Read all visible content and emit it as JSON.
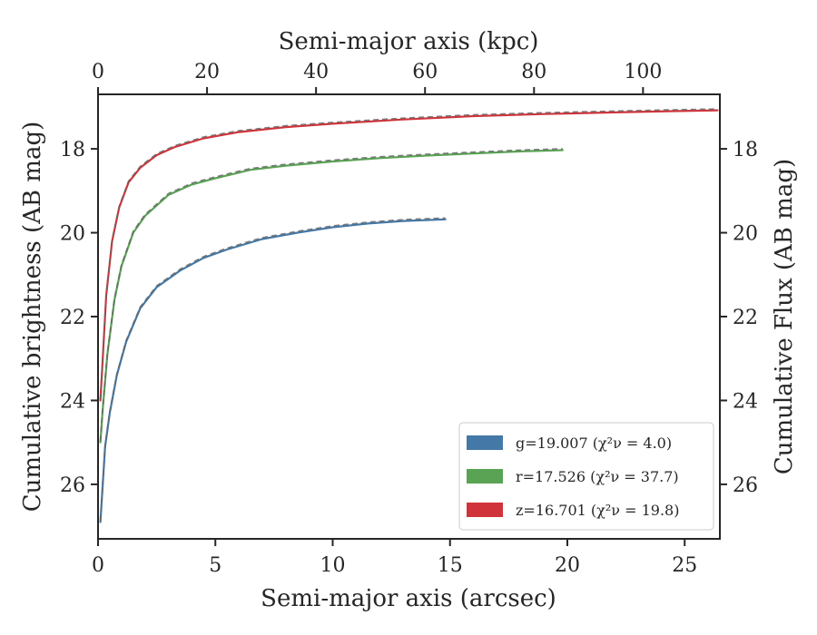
{
  "chart_data": {
    "type": "line",
    "title": "",
    "xlabel": "Semi-major axis (arcsec)",
    "ylabel": "Cumulative brightness (AB mag)",
    "xlabel_top": "Semi-major axis (kpc)",
    "ylabel_right": "Cumulative Flux (AB mag)",
    "xlim": [
      0,
      26.5
    ],
    "ylim": [
      27.3,
      16.7
    ],
    "y_inverted": true,
    "xlim_top": [
      0,
      114.1
    ],
    "xticks": [
      0,
      5,
      10,
      15,
      20,
      25
    ],
    "xticks_top": [
      0,
      20,
      40,
      60,
      80,
      100
    ],
    "yticks": [
      18,
      20,
      22,
      24,
      26
    ],
    "grid": false,
    "legend_position": "lower-right",
    "series": [
      {
        "name": "g=19.007",
        "chi2_label": "(χ²ν = 4.0)",
        "color": "#4478a6",
        "x": [
          0.1,
          0.3,
          0.5,
          0.8,
          1.2,
          1.8,
          2.5,
          3.5,
          4.5,
          5.5,
          7,
          8.5,
          10,
          11.5,
          13,
          14.8
        ],
        "y": [
          26.9,
          25.1,
          24.3,
          23.4,
          22.6,
          21.8,
          21.3,
          20.9,
          20.6,
          20.4,
          20.15,
          20.0,
          19.87,
          19.78,
          19.72,
          19.68
        ]
      },
      {
        "name": "r=17.526",
        "chi2_label": "(χ²ν = 37.7)",
        "color": "#5aa354",
        "x": [
          0.1,
          0.2,
          0.4,
          0.7,
          1.0,
          1.5,
          2.0,
          3.0,
          4.0,
          5.0,
          6.5,
          8,
          10,
          12,
          14,
          16,
          18,
          19.8
        ],
        "y": [
          25.0,
          24.2,
          22.9,
          21.6,
          20.8,
          20.0,
          19.6,
          19.1,
          18.85,
          18.7,
          18.5,
          18.4,
          18.3,
          18.22,
          18.16,
          18.11,
          18.06,
          18.03
        ]
      },
      {
        "name": "z=16.701",
        "chi2_label": "(χ²ν = 19.8)",
        "color": "#d1333a",
        "x": [
          0.1,
          0.2,
          0.35,
          0.6,
          0.9,
          1.3,
          1.8,
          2.5,
          3.3,
          4.5,
          6,
          8,
          10,
          13,
          16,
          19,
          22,
          24.5,
          26.4
        ],
        "y": [
          24.0,
          23.0,
          21.5,
          20.2,
          19.4,
          18.8,
          18.45,
          18.15,
          17.95,
          17.75,
          17.6,
          17.48,
          17.4,
          17.3,
          17.22,
          17.17,
          17.13,
          17.1,
          17.08
        ]
      }
    ]
  }
}
